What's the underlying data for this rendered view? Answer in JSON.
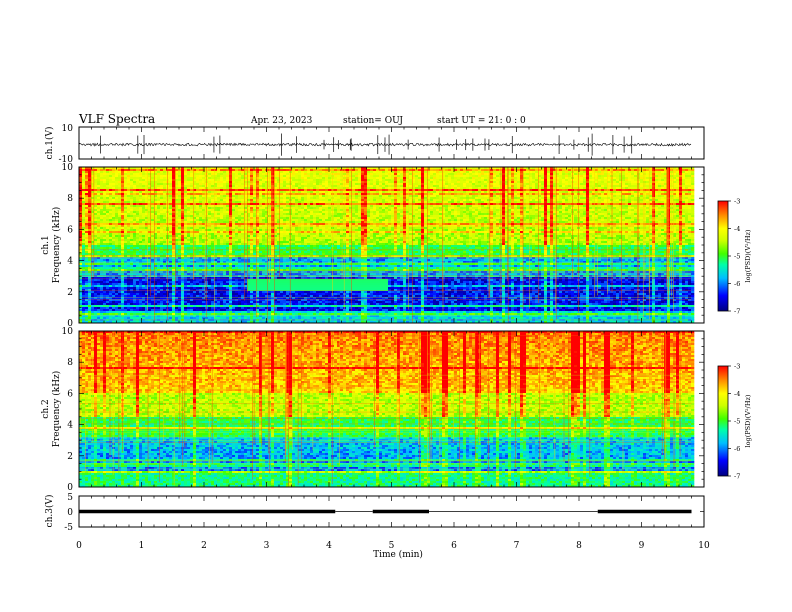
{
  "header": {
    "title": "VLF Spectra",
    "date": "Apr. 23, 2023",
    "station": "station= OUJ",
    "start_time": "start  UT =   21: 0  : 0"
  },
  "chart_data": [
    {
      "type": "line",
      "ylabel": "ch.1(V)",
      "ylim": [
        -10,
        10
      ],
      "y_ticks": [
        "10",
        "-10"
      ],
      "baseline": -1,
      "description_values": {
        "noise_amplitude": 0.8
      }
    },
    {
      "type": "heatmap",
      "ylabel_line1": "ch.1",
      "ylabel_line2": "Frequency (kHz)",
      "ylim": [
        0,
        10
      ],
      "y_ticks": [
        "10",
        "8",
        "6",
        "4",
        "2",
        "0"
      ],
      "colorbar": {
        "label": "log(PSD)(V²/Hz)",
        "range": [
          -7,
          -3
        ],
        "ticks": [
          "-3",
          "-4",
          "-5",
          "-6",
          "-7"
        ]
      }
    },
    {
      "type": "heatmap",
      "ylabel_line1": "ch.2",
      "ylabel_line2": "Frequency (kHz)",
      "ylim": [
        0,
        10
      ],
      "y_ticks": [
        "10",
        "8",
        "6",
        "4",
        "2",
        "0"
      ],
      "colorbar": {
        "label": "log(PSD)(V²/Hz)",
        "range": [
          -7,
          -3
        ],
        "ticks": [
          "-3",
          "-4",
          "-5",
          "-6",
          "-7"
        ]
      }
    },
    {
      "type": "line",
      "ylabel": "ch.3(V)",
      "ylim": [
        -5,
        5
      ],
      "y_ticks": [
        "5",
        "0",
        "-5"
      ],
      "level": 0,
      "gaps_min": [
        [
          4.1,
          4.7
        ],
        [
          5.6,
          8.3
        ]
      ]
    }
  ],
  "x_axis": {
    "label": "Time  (min)",
    "xlim": [
      0,
      10
    ],
    "ticks": [
      "0",
      "1",
      "2",
      "3",
      "4",
      "5",
      "6",
      "7",
      "8",
      "9",
      "10"
    ],
    "data_end_min": 9.8
  },
  "colors": {
    "colormap": [
      "#000080",
      "#0000ff",
      "#00bfff",
      "#00ffaa",
      "#40ff00",
      "#ccff00",
      "#ffff00",
      "#ff8c00",
      "#ff0000"
    ]
  }
}
